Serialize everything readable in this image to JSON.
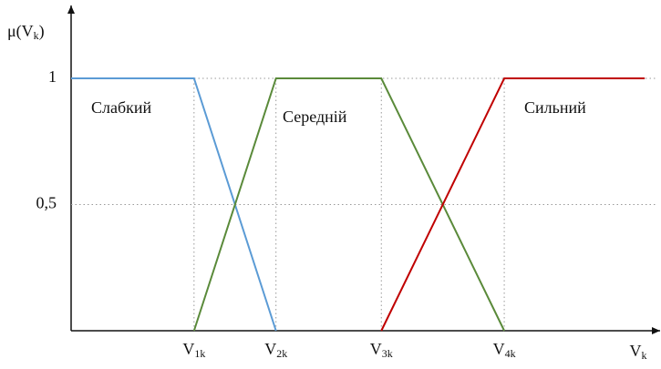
{
  "chart_data": {
    "type": "line",
    "y_label": "μ(Vk)",
    "x_label": "Vk",
    "xlim": [
      0,
      10
    ],
    "ylim": [
      0,
      1.25
    ],
    "xticks": [
      {
        "value": 2.1,
        "label": "V1k"
      },
      {
        "value": 3.5,
        "label": "V2k"
      },
      {
        "value": 5.3,
        "label": "V3k"
      },
      {
        "value": 7.4,
        "label": "V4k"
      }
    ],
    "yticks": [
      {
        "value": 0.5,
        "label": "0,5"
      },
      1
    ],
    "grid": true,
    "series": [
      {
        "name": "Слабкий",
        "color": "#5b9bd5",
        "x": [
          0,
          2.1,
          3.5
        ],
        "values": [
          1,
          1,
          0
        ]
      },
      {
        "name": "Середній",
        "color": "#5a8a3a",
        "x": [
          2.1,
          3.5,
          5.3,
          7.4
        ],
        "values": [
          0,
          1,
          1,
          0
        ]
      },
      {
        "name": "Сильний",
        "color": "#c00000",
        "x": [
          5.3,
          7.4,
          9.8
        ],
        "values": [
          0,
          1,
          1
        ]
      }
    ]
  }
}
